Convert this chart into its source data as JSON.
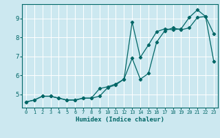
{
  "title": "",
  "xlabel": "Humidex (Indice chaleur)",
  "bg_color": "#cce8f0",
  "grid_color": "#ffffff",
  "line_color": "#006666",
  "xlim": [
    -0.5,
    23.5
  ],
  "ylim": [
    4.3,
    9.75
  ],
  "xticks": [
    0,
    1,
    2,
    3,
    4,
    5,
    6,
    7,
    8,
    9,
    10,
    11,
    12,
    13,
    14,
    15,
    16,
    17,
    18,
    19,
    20,
    21,
    22,
    23
  ],
  "yticks": [
    5,
    6,
    7,
    8,
    9
  ],
  "curve1_x": [
    0,
    1,
    2,
    3,
    4,
    5,
    6,
    7,
    8,
    9,
    10,
    11,
    12,
    13,
    14,
    15,
    16,
    17,
    18,
    19,
    20,
    21,
    22,
    23
  ],
  "curve1_y": [
    4.6,
    4.7,
    4.9,
    4.9,
    4.8,
    4.7,
    4.7,
    4.8,
    4.8,
    4.9,
    5.35,
    5.5,
    5.8,
    6.9,
    5.8,
    6.1,
    7.75,
    8.35,
    8.5,
    8.4,
    8.5,
    9.05,
    9.1,
    8.2
  ],
  "curve2_x": [
    0,
    1,
    2,
    3,
    4,
    5,
    6,
    7,
    8,
    9,
    10,
    11,
    12,
    13,
    14,
    15,
    16,
    17,
    18,
    19,
    20,
    21,
    22,
    23
  ],
  "curve2_y": [
    4.6,
    4.7,
    4.9,
    4.9,
    4.8,
    4.7,
    4.7,
    4.8,
    4.8,
    5.3,
    5.4,
    5.55,
    5.8,
    8.8,
    6.95,
    7.6,
    8.3,
    8.45,
    8.4,
    8.45,
    9.05,
    9.45,
    9.1,
    6.75
  ],
  "marker": "D",
  "markersize": 2.2,
  "linewidth": 0.9,
  "xlabel_fontsize": 6.5,
  "tick_fontsize_x": 5.0,
  "tick_fontsize_y": 6.5
}
